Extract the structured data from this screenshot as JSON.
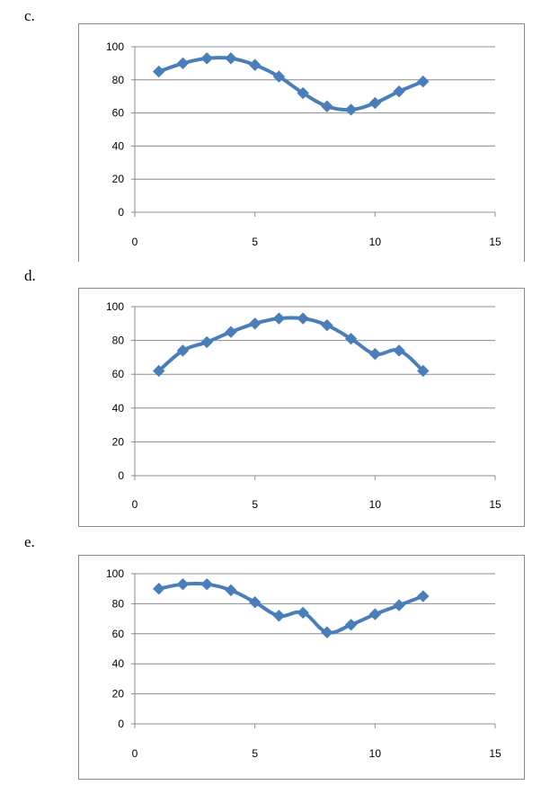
{
  "charts": [
    {
      "label": "c."
    },
    {
      "label": "d."
    },
    {
      "label": "e."
    }
  ],
  "chart_data": [
    {
      "type": "line",
      "title": "",
      "xlabel": "",
      "ylabel": "",
      "xlim": [
        0,
        15
      ],
      "ylim": [
        0,
        100
      ],
      "xticks": [
        0,
        5,
        10,
        15
      ],
      "yticks": [
        0,
        20,
        40,
        60,
        80,
        100
      ],
      "grid": "horizontal",
      "legend": "none",
      "series": [
        {
          "color": "#4a7ebb",
          "x": [
            1,
            2,
            3,
            4,
            5,
            6,
            7,
            8,
            9,
            10,
            11,
            12
          ],
          "y": [
            85,
            90,
            93,
            93,
            89,
            82,
            72,
            64,
            62,
            66,
            73,
            79
          ]
        }
      ]
    },
    {
      "type": "line",
      "title": "",
      "xlabel": "",
      "ylabel": "",
      "xlim": [
        0,
        15
      ],
      "ylim": [
        0,
        100
      ],
      "xticks": [
        0,
        5,
        10,
        15
      ],
      "yticks": [
        0,
        20,
        40,
        60,
        80,
        100
      ],
      "grid": "horizontal",
      "legend": "none",
      "series": [
        {
          "color": "#4a7ebb",
          "x": [
            1,
            2,
            3,
            4,
            5,
            6,
            7,
            8,
            9,
            10,
            11,
            12
          ],
          "y": [
            62,
            74,
            79,
            85,
            90,
            93,
            93,
            89,
            81,
            72,
            74,
            62
          ]
        }
      ]
    },
    {
      "type": "line",
      "title": "",
      "xlabel": "",
      "ylabel": "",
      "xlim": [
        0,
        15
      ],
      "ylim": [
        0,
        100
      ],
      "xticks": [
        0,
        5,
        10,
        15
      ],
      "yticks": [
        0,
        20,
        40,
        60,
        80,
        100
      ],
      "grid": "horizontal",
      "legend": "none",
      "series": [
        {
          "color": "#4a7ebb",
          "x": [
            1,
            2,
            3,
            4,
            5,
            6,
            7,
            8,
            9,
            10,
            11,
            12
          ],
          "y": [
            90,
            93,
            93,
            89,
            81,
            72,
            74,
            61,
            66,
            73,
            79,
            85
          ]
        }
      ]
    }
  ]
}
